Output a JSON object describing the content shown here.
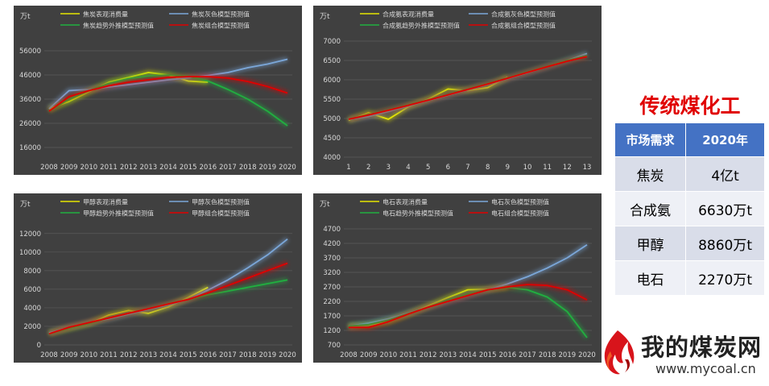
{
  "chart_data": [
    {
      "type": "line",
      "yunit": "万t",
      "categories": [
        "2008",
        "2009",
        "2010",
        "2011",
        "2012",
        "2013",
        "2014",
        "2015",
        "2016",
        "2017",
        "2018",
        "2019",
        "2020"
      ],
      "yticks": [
        16000,
        26000,
        36000,
        46000,
        56000
      ],
      "ylim": [
        12000,
        60000
      ],
      "series": [
        {
          "name": "焦炭表观消费量",
          "color": "#e6e600",
          "values": [
            32000,
            35000,
            39000,
            43000,
            45000,
            47000,
            46000,
            43500,
            43000,
            null,
            null,
            null,
            null
          ]
        },
        {
          "name": "焦炭灰色模型预测值",
          "color": "#7ba7d9",
          "values": [
            32000,
            39500,
            40000,
            41000,
            42000,
            43000,
            44000,
            44800,
            45800,
            47000,
            49000,
            50500,
            52500
          ]
        },
        {
          "name": "焦炭趋势外推模型预测值",
          "color": "#20b040",
          "values": [
            31000,
            36000,
            39500,
            42500,
            44500,
            45500,
            46000,
            45500,
            43500,
            40000,
            36000,
            31000,
            25000
          ]
        },
        {
          "name": "焦炭组合模型预测值",
          "color": "#e00000",
          "values": [
            31000,
            37000,
            39500,
            41500,
            43000,
            44000,
            45000,
            45300,
            45300,
            44700,
            43300,
            41200,
            38500
          ]
        }
      ]
    },
    {
      "type": "line",
      "yunit": "万t",
      "categories": [
        "1",
        "2",
        "3",
        "4",
        "5",
        "6",
        "7",
        "8",
        "9",
        "10",
        "11",
        "12",
        "13"
      ],
      "yticks": [
        4000,
        4500,
        5000,
        5500,
        6000,
        6500,
        7000
      ],
      "ylim": [
        4000,
        7000
      ],
      "series": [
        {
          "name": "合成氨表观消费量",
          "color": "#e6e600",
          "values": [
            4950,
            5150,
            4980,
            5300,
            5500,
            5760,
            5720,
            5800,
            6070,
            null,
            null,
            null,
            null
          ]
        },
        {
          "name": "合成氨灰色模型预测值",
          "color": "#7ba7d9",
          "values": [
            4970,
            5050,
            5180,
            5320,
            5460,
            5600,
            5740,
            5880,
            6030,
            6180,
            6340,
            6500,
            6680
          ]
        },
        {
          "name": "合成氨趋势外推模型预测值",
          "color": "#20b040",
          "values": [
            4980,
            5100,
            5220,
            5350,
            5480,
            5620,
            5760,
            5900,
            6050,
            6200,
            6350,
            6500,
            6620
          ]
        },
        {
          "name": "合成氨组合模型预测值",
          "color": "#e00000",
          "values": [
            4980,
            5090,
            5210,
            5340,
            5470,
            5610,
            5750,
            5890,
            6040,
            6190,
            6340,
            6480,
            6600
          ]
        }
      ]
    },
    {
      "type": "line",
      "yunit": "万t",
      "categories": [
        "2008",
        "2009",
        "2010",
        "2011",
        "2012",
        "2013",
        "2014",
        "2015",
        "2016",
        "2017",
        "2018",
        "2019",
        "2020"
      ],
      "yticks": [
        0,
        2000,
        4000,
        6000,
        8000,
        10000,
        12000
      ],
      "ylim": [
        0,
        12500
      ],
      "series": [
        {
          "name": "甲醇表观消费量",
          "color": "#e6e600",
          "values": [
            1300,
            1800,
            2300,
            3200,
            3700,
            3400,
            4100,
            5100,
            6200,
            null,
            null,
            null,
            null
          ]
        },
        {
          "name": "甲醇灰色模型预测值",
          "color": "#7ba7d9",
          "values": [
            1300,
            1900,
            2400,
            2800,
            3300,
            3800,
            4300,
            4900,
            5900,
            7000,
            8300,
            9700,
            11400
          ]
        },
        {
          "name": "甲醇趋势外推模型预测值",
          "color": "#20b040",
          "values": [
            1200,
            1800,
            2300,
            2900,
            3400,
            3900,
            4400,
            4900,
            5400,
            5800,
            6200,
            6600,
            7000
          ]
        },
        {
          "name": "甲醇组合模型预测值",
          "color": "#e00000",
          "values": [
            1200,
            1900,
            2400,
            2900,
            3400,
            3900,
            4400,
            4900,
            5600,
            6400,
            7200,
            8000,
            8800
          ]
        }
      ]
    },
    {
      "type": "line",
      "yunit": "万t",
      "categories": [
        "2008",
        "2009",
        "2010",
        "2011",
        "2012",
        "2013",
        "2014",
        "2015",
        "2016",
        "2017",
        "2018",
        "2019",
        "2020"
      ],
      "yticks": [
        700,
        1200,
        1700,
        2200,
        2700,
        3200,
        3700,
        4200,
        4700
      ],
      "ylim": [
        700,
        4700
      ],
      "series": [
        {
          "name": "电石表观消费量",
          "color": "#e6e600",
          "values": [
            1350,
            1380,
            1500,
            1760,
            2050,
            2330,
            2600,
            2620,
            2700,
            null,
            null,
            null,
            null
          ]
        },
        {
          "name": "电石灰色模型预测值",
          "color": "#7ba7d9",
          "values": [
            1350,
            1450,
            1600,
            1800,
            2000,
            2200,
            2400,
            2600,
            2800,
            3050,
            3350,
            3700,
            4150
          ]
        },
        {
          "name": "电石趋势外推模型预测值",
          "color": "#20b040",
          "values": [
            1350,
            1400,
            1550,
            1780,
            2000,
            2250,
            2450,
            2600,
            2680,
            2600,
            2350,
            1850,
            950
          ]
        },
        {
          "name": "电石组合模型预测值",
          "color": "#e00000",
          "values": [
            1300,
            1300,
            1500,
            1760,
            2000,
            2200,
            2400,
            2600,
            2700,
            2780,
            2750,
            2600,
            2250
          ]
        }
      ]
    }
  ],
  "right_panel": {
    "title": "传统煤化工",
    "table": {
      "header": [
        "市场需求",
        "2020年"
      ],
      "rows": [
        [
          "焦炭",
          "4亿t"
        ],
        [
          "合成氨",
          "6630万t"
        ],
        [
          "甲醇",
          "8860万t"
        ],
        [
          "电石",
          "2270万t"
        ]
      ]
    },
    "logo": {
      "text": "我的煤炭网",
      "url": "www.mycoal.cn"
    }
  }
}
